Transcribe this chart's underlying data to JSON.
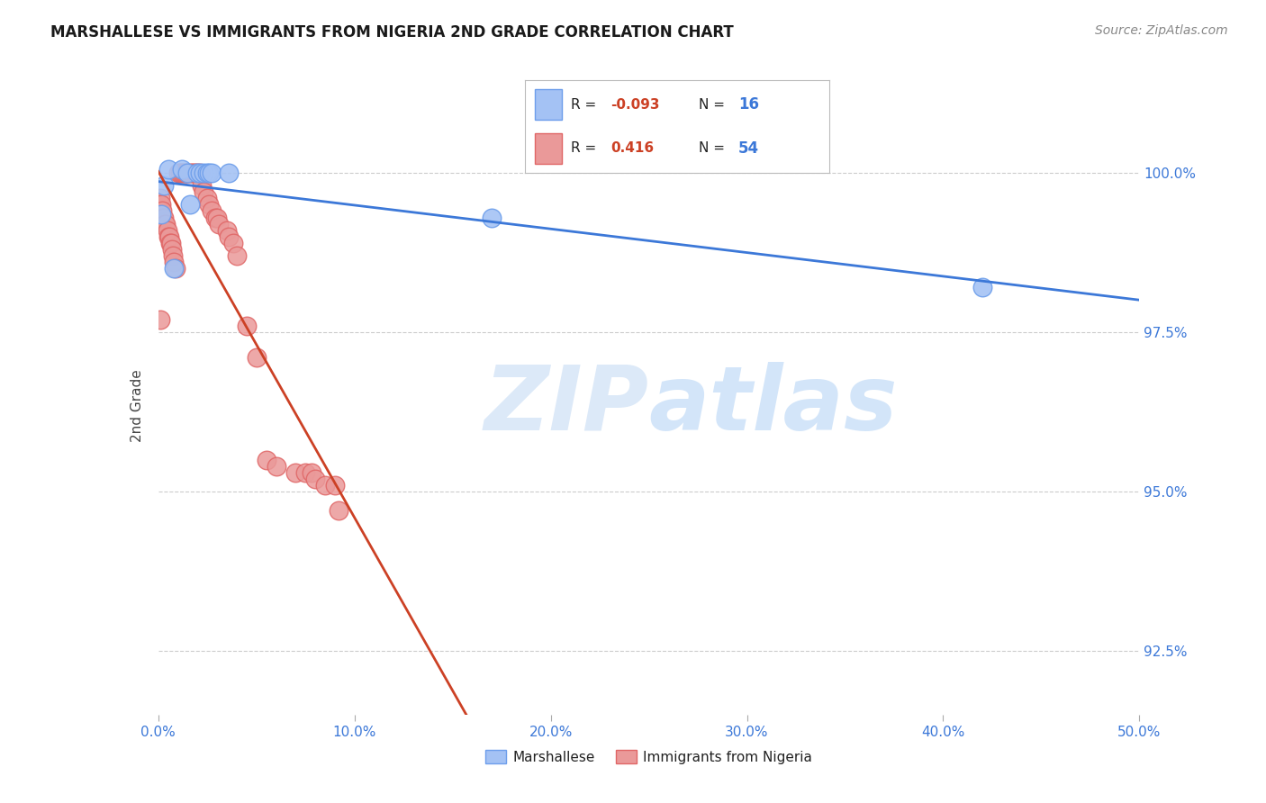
{
  "title": "MARSHALLESE VS IMMIGRANTS FROM NIGERIA 2ND GRADE CORRELATION CHART",
  "source": "Source: ZipAtlas.com",
  "ylabel": "2nd Grade",
  "ytick_labels": [
    "92.5%",
    "95.0%",
    "97.5%",
    "100.0%"
  ],
  "ytick_values": [
    92.5,
    95.0,
    97.5,
    100.0
  ],
  "xlim": [
    0.0,
    50.0
  ],
  "ylim": [
    91.5,
    101.2
  ],
  "blue_color": "#a4c2f4",
  "blue_edge": "#6d9eeb",
  "pink_color": "#ea9999",
  "pink_edge": "#e06666",
  "trendline_blue": "#3c78d8",
  "trendline_pink": "#cc4125",
  "grid_color": "#cccccc",
  "watermark_color": "#dce9f8",
  "blue_scatter_x": [
    0.15,
    0.3,
    0.5,
    1.2,
    1.5,
    1.6,
    2.0,
    2.1,
    2.3,
    2.5,
    2.6,
    2.7,
    3.6,
    17.0,
    42.0,
    0.8
  ],
  "blue_scatter_y": [
    99.35,
    99.8,
    100.05,
    100.05,
    100.0,
    99.5,
    100.0,
    100.0,
    100.0,
    100.0,
    100.0,
    100.0,
    100.0,
    99.3,
    98.2,
    98.5
  ],
  "pink_scatter_x": [
    0.05,
    0.08,
    0.1,
    0.15,
    0.2,
    0.25,
    0.3,
    0.35,
    0.4,
    0.45,
    0.5,
    0.55,
    0.6,
    0.65,
    0.7,
    0.75,
    0.8,
    0.9,
    1.0,
    1.1,
    1.2,
    1.3,
    1.4,
    1.5,
    1.6,
    1.7,
    1.8,
    1.9,
    2.0,
    2.1,
    2.2,
    2.3,
    2.5,
    2.6,
    2.7,
    2.9,
    3.0,
    3.1,
    3.5,
    3.6,
    3.8,
    4.0,
    4.5,
    5.0,
    5.5,
    6.0,
    7.0,
    7.5,
    7.8,
    8.0,
    8.5,
    9.0,
    9.2,
    0.12
  ],
  "pink_scatter_y": [
    99.5,
    99.5,
    99.6,
    99.5,
    99.4,
    99.3,
    99.3,
    99.2,
    99.2,
    99.1,
    99.0,
    99.0,
    98.9,
    98.9,
    98.8,
    98.7,
    98.6,
    98.5,
    100.0,
    100.0,
    100.0,
    100.0,
    100.0,
    100.0,
    100.0,
    100.0,
    100.0,
    100.0,
    100.0,
    100.0,
    99.8,
    99.7,
    99.6,
    99.5,
    99.4,
    99.3,
    99.3,
    99.2,
    99.1,
    99.0,
    98.9,
    98.7,
    97.6,
    97.1,
    95.5,
    95.4,
    95.3,
    95.3,
    95.3,
    95.2,
    95.1,
    95.1,
    94.7,
    97.7
  ],
  "r_blue": "-0.093",
  "n_blue": "16",
  "r_pink": "0.416",
  "n_pink": "54"
}
